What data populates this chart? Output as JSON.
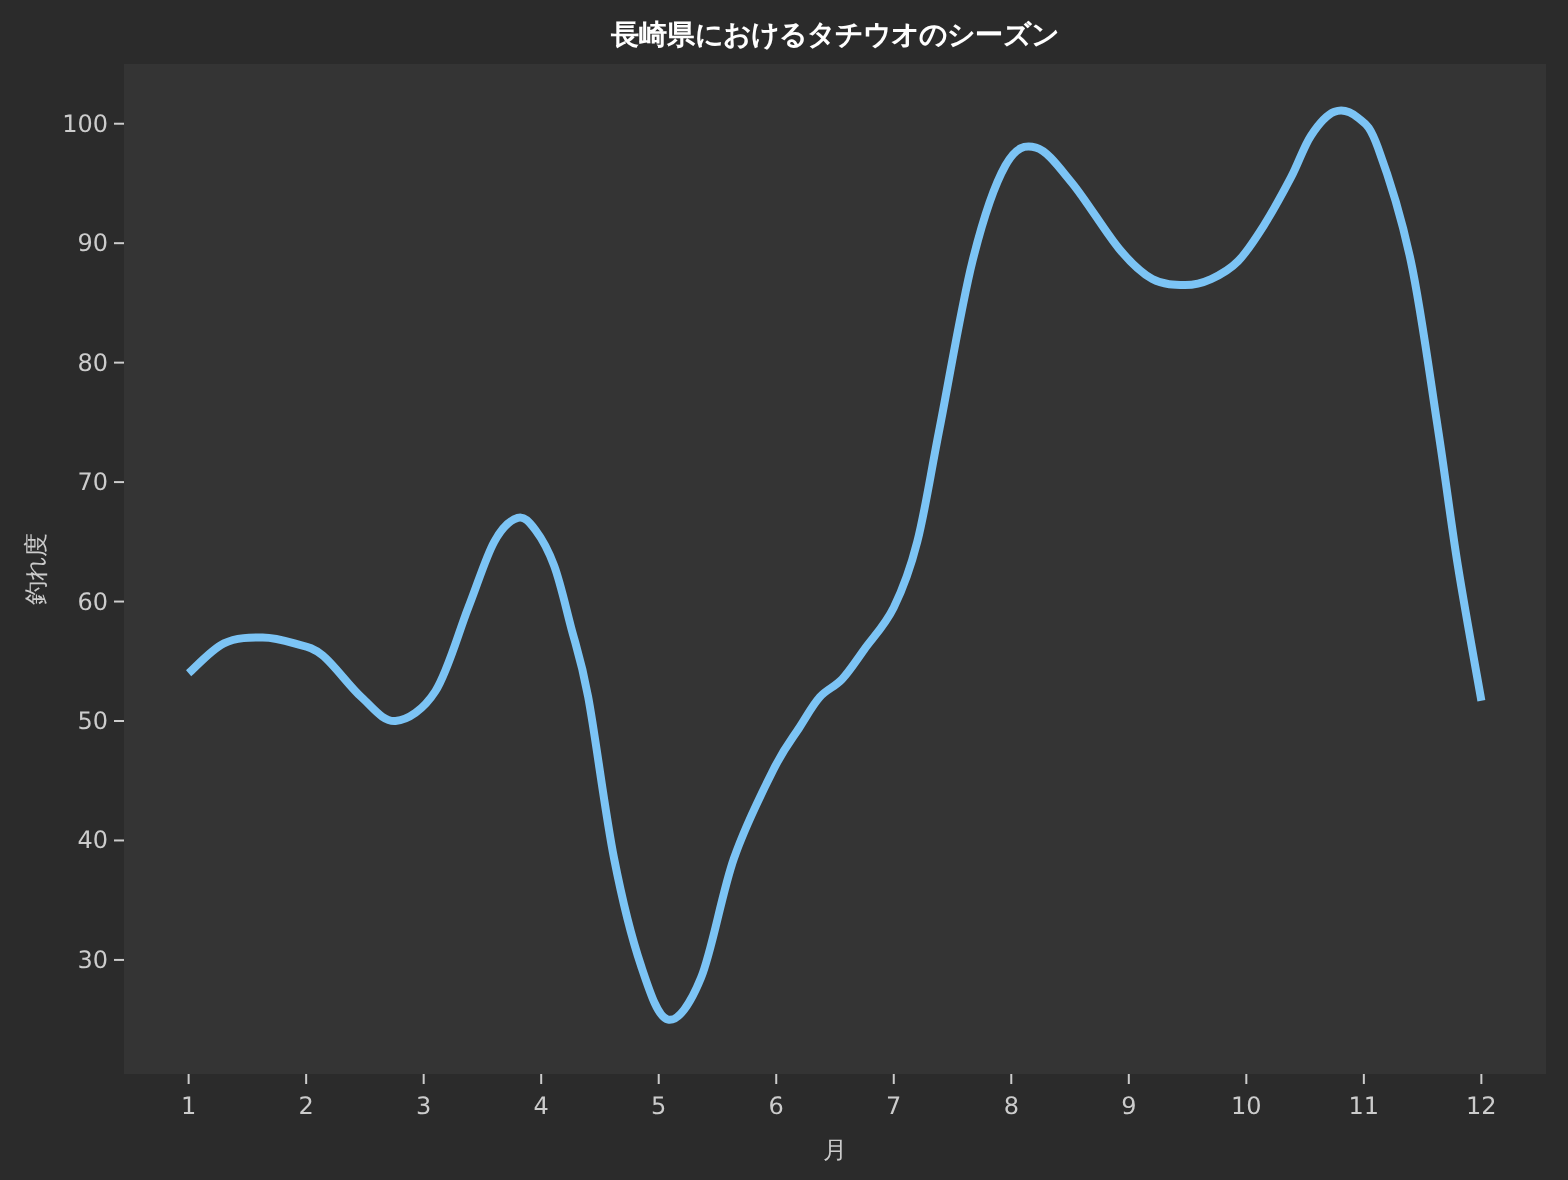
{
  "chart_data": {
    "type": "line",
    "title": "長崎県におけるタチウオのシーズン",
    "xlabel": "月",
    "ylabel": "釣れ度",
    "xlim": [
      0.45,
      12.55
    ],
    "ylim": [
      20.45,
      105
    ],
    "xticks": [
      1,
      2,
      3,
      4,
      5,
      6,
      7,
      8,
      9,
      10,
      11,
      12
    ],
    "yticks": [
      30,
      40,
      50,
      60,
      70,
      80,
      90,
      100
    ],
    "grid": false,
    "series": [
      {
        "color": "#7cc4f5",
        "x": [
          1,
          1.3,
          1.63,
          1.9,
          2.14,
          2.47,
          2.76,
          3.1,
          3.38,
          3.6,
          3.8,
          3.95,
          4.11,
          4.25,
          4.4,
          4.62,
          4.85,
          5.08,
          5.36,
          5.64,
          5.98,
          6.2,
          6.37,
          6.56,
          6.75,
          7.0,
          7.2,
          7.39,
          7.67,
          7.95,
          8.21,
          8.52,
          8.92,
          9.2,
          9.48,
          9.7,
          9.93,
          10.15,
          10.38,
          10.55,
          10.75,
          10.95,
          11.12,
          11.4,
          11.63,
          11.8,
          12
        ],
        "values": [
          54,
          56.5,
          57,
          56.5,
          55.5,
          52,
          50,
          52.5,
          59.5,
          65,
          67,
          66,
          63,
          58,
          52,
          38.5,
          29.5,
          25,
          28.5,
          38.5,
          46,
          49.5,
          52,
          53.5,
          56,
          59.5,
          65,
          74.5,
          88.5,
          96.5,
          98,
          95,
          89.5,
          87,
          86.5,
          87,
          88.5,
          91.5,
          95.5,
          99,
          101,
          100.5,
          98,
          88.5,
          74.5,
          63,
          51.7
        ]
      }
    ]
  }
}
